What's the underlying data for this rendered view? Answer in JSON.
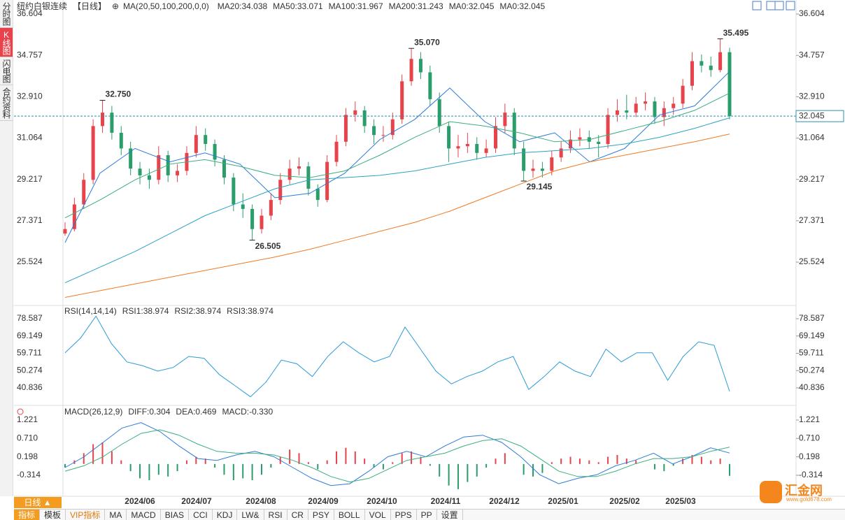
{
  "sidebar": {
    "tabs": [
      "分时图",
      "K线图",
      "闪电图",
      "合约资料"
    ]
  },
  "header": {
    "title": "纽约白银连续",
    "period": "【日线】",
    "ma_params": "MA(20,50,100,200,0,0)"
  },
  "chart_data": [
    {
      "type": "candlestick",
      "ylim": [
        23.59,
        37.23
      ],
      "yticks": [
        25.524,
        27.371,
        29.217,
        31.064,
        {
          "value": 32.91,
          "label": "32.910"
        },
        34.757,
        36.604
      ],
      "up_color": "#e8424a",
      "down_color": "#2a9d6a",
      "candles": [
        [
          26.8,
          27.3,
          26.7,
          27.0
        ],
        [
          27.0,
          28.4,
          26.9,
          28.1
        ],
        [
          28.1,
          29.5,
          27.9,
          29.2
        ],
        [
          29.2,
          31.9,
          29.0,
          31.6
        ],
        [
          31.6,
          32.75,
          31.3,
          32.2
        ],
        [
          32.2,
          32.5,
          31.0,
          31.3
        ],
        [
          31.3,
          31.6,
          30.3,
          30.6
        ],
        [
          30.6,
          30.9,
          29.4,
          29.7
        ],
        [
          29.7,
          30.0,
          29.0,
          29.4
        ],
        [
          29.4,
          29.7,
          28.8,
          29.2
        ],
        [
          29.2,
          30.7,
          29.0,
          30.3
        ],
        [
          30.3,
          30.5,
          29.1,
          29.4
        ],
        [
          29.4,
          29.9,
          29.1,
          29.6
        ],
        [
          29.6,
          30.7,
          29.4,
          30.4
        ],
        [
          30.4,
          31.6,
          30.2,
          31.2
        ],
        [
          31.2,
          31.5,
          30.5,
          30.8
        ],
        [
          30.8,
          31.0,
          29.8,
          30.1
        ],
        [
          30.1,
          30.3,
          29.0,
          29.3
        ],
        [
          29.3,
          29.5,
          27.8,
          28.1
        ],
        [
          28.1,
          28.6,
          27.5,
          27.9
        ],
        [
          27.9,
          28.1,
          26.505,
          27.0
        ],
        [
          27.0,
          27.9,
          26.8,
          27.6
        ],
        [
          27.6,
          28.6,
          27.4,
          28.3
        ],
        [
          28.3,
          29.5,
          28.1,
          29.2
        ],
        [
          29.2,
          30.1,
          29.0,
          29.7
        ],
        [
          29.7,
          30.2,
          29.4,
          29.8
        ],
        [
          29.8,
          30.0,
          28.5,
          28.8
        ],
        [
          28.8,
          29.0,
          28.0,
          28.3
        ],
        [
          28.3,
          30.3,
          28.2,
          30.0
        ],
        [
          30.0,
          31.2,
          29.8,
          30.9
        ],
        [
          30.9,
          32.4,
          30.7,
          32.1
        ],
        [
          32.1,
          32.7,
          31.8,
          32.3
        ],
        [
          32.3,
          32.5,
          31.3,
          31.6
        ],
        [
          31.6,
          31.9,
          30.8,
          31.2
        ],
        [
          31.2,
          31.6,
          30.9,
          31.2
        ],
        [
          31.2,
          32.2,
          31.0,
          31.9
        ],
        [
          31.9,
          33.9,
          31.7,
          33.6
        ],
        [
          33.6,
          35.07,
          33.4,
          34.6
        ],
        [
          34.6,
          34.9,
          33.7,
          34.0
        ],
        [
          34.0,
          34.3,
          32.5,
          32.8
        ],
        [
          32.8,
          33.1,
          31.3,
          31.6
        ],
        [
          31.6,
          31.8,
          30.0,
          30.6
        ],
        [
          30.6,
          31.2,
          30.2,
          30.7
        ],
        [
          30.7,
          31.3,
          30.4,
          30.8
        ],
        [
          30.8,
          31.1,
          30.1,
          30.4
        ],
        [
          30.4,
          31.0,
          30.2,
          30.6
        ],
        [
          30.6,
          32.0,
          30.4,
          31.6
        ],
        [
          31.6,
          32.6,
          31.3,
          32.2
        ],
        [
          32.2,
          32.4,
          30.3,
          30.6
        ],
        [
          30.6,
          30.9,
          29.145,
          29.6
        ],
        [
          29.6,
          30.1,
          29.3,
          29.7
        ],
        [
          29.7,
          30.0,
          29.3,
          29.6
        ],
        [
          29.6,
          30.5,
          29.4,
          30.2
        ],
        [
          30.2,
          30.9,
          30.0,
          30.6
        ],
        [
          30.6,
          31.4,
          30.4,
          31.0
        ],
        [
          31.0,
          31.5,
          30.7,
          31.1
        ],
        [
          31.1,
          31.4,
          30.6,
          30.9
        ],
        [
          30.9,
          31.2,
          30.2,
          30.8
        ],
        [
          30.8,
          32.4,
          30.6,
          32.1
        ],
        [
          32.1,
          32.8,
          31.8,
          32.3
        ],
        [
          32.3,
          33.0,
          31.9,
          32.2
        ],
        [
          32.2,
          32.9,
          32.0,
          32.6
        ],
        [
          32.6,
          33.1,
          32.3,
          32.7
        ],
        [
          32.7,
          32.9,
          31.7,
          32.0
        ],
        [
          32.0,
          32.7,
          31.6,
          32.4
        ],
        [
          32.4,
          32.9,
          32.1,
          32.6
        ],
        [
          32.6,
          33.7,
          32.4,
          33.4
        ],
        [
          33.4,
          34.9,
          33.2,
          34.5
        ],
        [
          34.5,
          34.8,
          34.0,
          34.3
        ],
        [
          34.3,
          34.7,
          33.8,
          34.1
        ],
        [
          34.1,
          35.495,
          34.0,
          34.9
        ],
        [
          34.9,
          35.1,
          31.9,
          32.045
        ]
      ],
      "series": [
        {
          "name": "MA20:34.038",
          "color": "#2b7bd8",
          "values": [
            26.4,
            29.5,
            30.6,
            30.0,
            30.4,
            29.9,
            28.4,
            28.6,
            29.5,
            31.0,
            31.9,
            33.3,
            31.8,
            30.9,
            31.3,
            30.0,
            30.6,
            32.1,
            32.5,
            34.038
          ]
        },
        {
          "name": "MA50:33.071",
          "color": "#3aae7e",
          "values": [
            27.5,
            28.3,
            29.2,
            29.9,
            30.1,
            29.8,
            29.4,
            29.3,
            29.6,
            30.3,
            31.1,
            31.8,
            31.6,
            31.3,
            30.9,
            31.0,
            31.4,
            31.8,
            32.3,
            33.071
          ]
        },
        {
          "name": "MA100:31.967",
          "color": "#2ba3c4",
          "values": [
            24.6,
            25.3,
            26.0,
            26.8,
            27.6,
            28.2,
            28.8,
            29.2,
            29.3,
            29.4,
            29.6,
            29.9,
            30.2,
            30.4,
            30.5,
            30.6,
            30.8,
            31.1,
            31.5,
            31.967
          ]
        },
        {
          "name": "MA200:31.243",
          "color": "#f07a22",
          "values": [
            23.95,
            24.25,
            24.55,
            24.85,
            25.15,
            25.45,
            25.75,
            26.1,
            26.5,
            26.9,
            27.3,
            27.8,
            28.4,
            29.0,
            29.6,
            30.0,
            30.3,
            30.6,
            30.9,
            31.243
          ]
        }
      ],
      "legend_extra": [
        {
          "name": "MA0:32.045",
          "color": "#d883d8"
        },
        {
          "name": "MA0:32.045",
          "color": "#9a8ee0"
        }
      ],
      "extremes": [
        {
          "value": 32.75,
          "label": "32.750"
        },
        {
          "value": 26.505,
          "label": "26.505"
        },
        {
          "value": 35.07,
          "label": "35.070"
        },
        {
          "value": 29.145,
          "label": "29.145"
        },
        {
          "value": 35.495,
          "label": "35.495"
        }
      ],
      "last": {
        "value": 32.045,
        "label": "32.045"
      },
      "x_labels": [
        "2024/06",
        "2024/07",
        "2024/08",
        "2024/09",
        "2024/10",
        "2024/11",
        "2024/12",
        "2025/01",
        "2025/02",
        "2025/03"
      ]
    },
    {
      "type": "line",
      "title": "RSI(14,14,14)",
      "ylim": [
        31.3,
        85.83
      ],
      "yticks": [
        40.836,
        50.274,
        59.711,
        69.149,
        78.587
      ],
      "series": [
        {
          "name": "RSI1:38.974",
          "color": "#2b9ad8",
          "values": [
            60,
            68,
            80,
            65,
            55,
            53,
            50,
            52,
            58,
            57,
            48,
            42,
            36,
            44,
            56,
            54,
            47,
            58,
            66,
            60,
            55,
            58,
            74,
            62,
            50,
            43,
            47,
            50,
            55,
            58,
            40,
            47,
            55,
            50,
            47,
            62,
            55,
            60,
            60,
            45,
            58,
            66,
            64,
            38.974
          ]
        }
      ],
      "legend_extra": [
        {
          "name": "RSI2:38.974",
          "color": "#3aae7e"
        },
        {
          "name": "RSI3:38.974",
          "color": "#2bb5c8"
        }
      ]
    },
    {
      "type": "macd",
      "title": "MACD(26,12,9)",
      "ylim": [
        -0.897,
        1.629
      ],
      "yticks": [
        -0.314,
        0.198,
        {
          "value": 0.71,
          "label": "0.710"
        },
        1.221
      ],
      "series": [
        {
          "name": "DIFF:0.304",
          "color": "#2b7bd8",
          "values": [
            -0.1,
            0.2,
            0.6,
            1.0,
            1.15,
            0.9,
            0.5,
            0.15,
            0.1,
            0.25,
            0.35,
            0.2,
            -0.1,
            -0.4,
            -0.6,
            -0.55,
            -0.2,
            0.2,
            0.35,
            0.2,
            0.5,
            0.75,
            0.8,
            0.6,
            0.2,
            -0.3,
            -0.55,
            -0.4,
            -0.3,
            -0.05,
            0.1,
            0.3,
            0.0,
            0.2,
            0.45,
            0.304
          ]
        },
        {
          "name": "DEA:0.469",
          "color": "#3aae7e",
          "values": [
            -0.2,
            -0.05,
            0.2,
            0.55,
            0.85,
            0.95,
            0.8,
            0.55,
            0.35,
            0.3,
            0.3,
            0.25,
            0.1,
            -0.1,
            -0.35,
            -0.5,
            -0.4,
            -0.15,
            0.1,
            0.2,
            0.3,
            0.5,
            0.65,
            0.7,
            0.5,
            0.15,
            -0.2,
            -0.35,
            -0.35,
            -0.2,
            0.0,
            0.15,
            0.15,
            0.2,
            0.35,
            0.469
          ]
        }
      ],
      "histogram": {
        "name": "MACD:-0.330",
        "color": "#6f8fe0",
        "up_color": "#e8424a",
        "down_color": "#2a9d6a",
        "values": [
          -0.1,
          0.1,
          0.3,
          0.55,
          0.6,
          0.35,
          0.1,
          -0.2,
          -0.4,
          -0.45,
          -0.3,
          -0.35,
          -0.2,
          0.1,
          0.2,
          0.15,
          -0.1,
          -0.3,
          -0.45,
          -0.4,
          -0.45,
          -0.3,
          -0.1,
          0.2,
          0.4,
          0.3,
          0.05,
          -0.15,
          0.1,
          0.35,
          0.45,
          0.35,
          0.15,
          -0.1,
          -0.15,
          0.05,
          0.3,
          0.35,
          0.2,
          -0.05,
          -0.35,
          -0.6,
          -0.7,
          -0.5,
          -0.35,
          -0.1,
          0.15,
          0.3,
          0.0,
          -0.3,
          -0.35,
          -0.25,
          0.05,
          0.15,
          0.2,
          0.15,
          0.1,
          0.05,
          0.2,
          0.25,
          0.15,
          0.1,
          0.0,
          -0.15,
          -0.2,
          -0.05,
          0.15,
          0.25,
          0.2,
          0.1,
          0.15,
          -0.33
        ]
      }
    }
  ],
  "footer": {
    "period_button": "日线",
    "tabs": [
      "指标",
      "模板",
      "VIP指标",
      "MA",
      "MACD",
      "BIAS",
      "CCI",
      "KDJ",
      "LW&",
      "RSI",
      "CR",
      "PSY",
      "BOLL",
      "VOL",
      "PPS",
      "PP",
      "设置"
    ]
  },
  "logo": {
    "name": "汇金网",
    "url": "www.gold678.com"
  }
}
